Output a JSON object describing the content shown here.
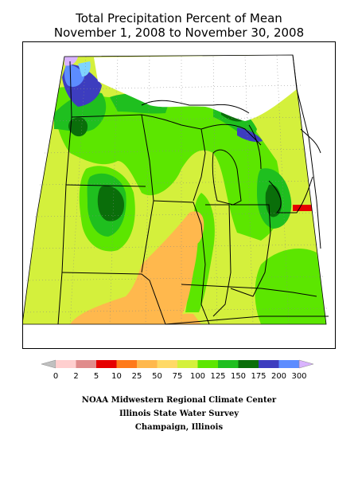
{
  "title_line1": "Total Precipitation Percent of Mean",
  "title_line2": "November 1, 2008 to November 30, 2008",
  "legend": {
    "ticks": [
      "0",
      "2",
      "5",
      "10",
      "25",
      "50",
      "75",
      "100",
      "125",
      "150",
      "175",
      "200",
      "300"
    ],
    "colors": [
      "#ffcfcf",
      "#e08c8c",
      "#e60000",
      "#ff7a1a",
      "#ffb84d",
      "#ffd966",
      "#d4f03c",
      "#5ce600",
      "#1fbf1f",
      "#0a6e0a",
      "#3d3dbf",
      "#5c8cff",
      "#7fd4ff",
      "#e0a8ff"
    ],
    "end_left_color": "#c0c0c0",
    "end_right_color": "#d9b3ff"
  },
  "credits": {
    "line1": "NOAA Midwestern Regional Climate Center",
    "line2": "Illinois State Water Survey",
    "line3": "Champaign, Illinois"
  },
  "map_colors": {
    "lt25": "#ffb84d",
    "p50_75": "#d4f03c",
    "p75_100": "#5ce600",
    "p100_125": "#1fbf1f",
    "p125_150": "#0a6e0a",
    "p150_175": "#3d3dbf",
    "p175_200": "#5c8cff",
    "p200_300": "#7fd4ff",
    "gt300": "#d9b3ff",
    "p5_10": "#e60000"
  }
}
